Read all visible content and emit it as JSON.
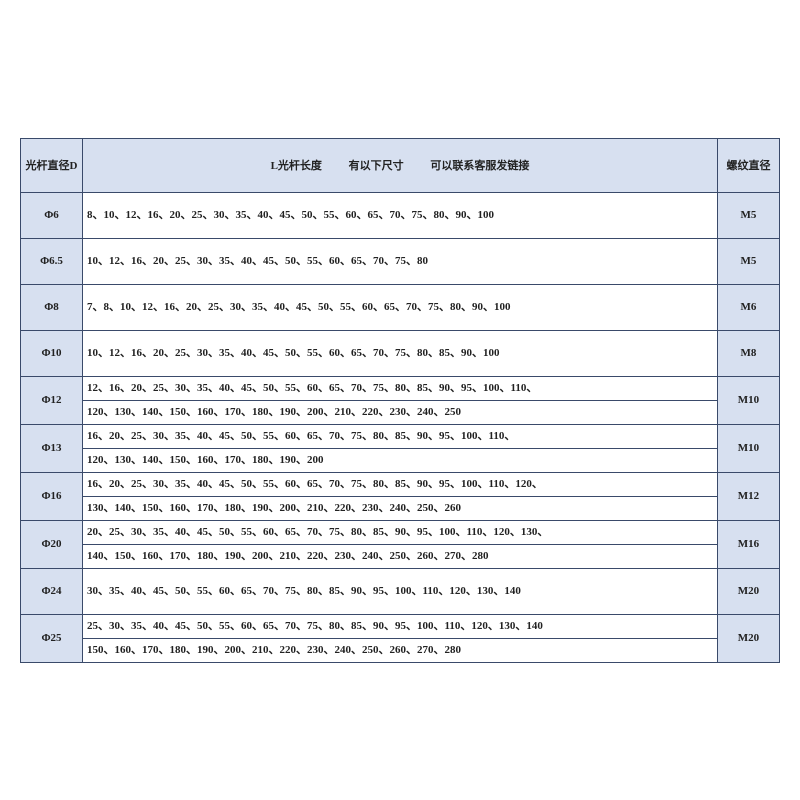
{
  "colors": {
    "header_bg": "#d7e0f0",
    "cell_bg": "#ffffff",
    "border": "#3a4a6a",
    "text": "#222222"
  },
  "table": {
    "header": {
      "col1": "光杆直径D",
      "col2_main": "L光杆长度",
      "col2_sub": "有以下尺寸",
      "col2_sub2": "可以联系客服发链接",
      "col3": "螺纹直径"
    },
    "rows": [
      {
        "diameter": "Φ6",
        "thread": "M5",
        "lengths": [
          "8、10、12、16、20、25、30、35、40、45、50、55、60、65、70、75、80、90、100"
        ]
      },
      {
        "diameter": "Φ6.5",
        "thread": "M5",
        "lengths": [
          "10、12、16、20、25、30、35、40、45、50、55、60、65、70、75、80"
        ]
      },
      {
        "diameter": "Φ8",
        "thread": "M6",
        "lengths": [
          "7、8、10、12、16、20、25、30、35、40、45、50、55、60、65、70、75、80、90、100"
        ]
      },
      {
        "diameter": "Φ10",
        "thread": "M8",
        "lengths": [
          "10、12、16、20、25、30、35、40、45、50、55、60、65、70、75、80、85、90、100"
        ]
      },
      {
        "diameter": "Φ12",
        "thread": "M10",
        "lengths": [
          "12、16、20、25、30、35、40、45、50、55、60、65、70、75、80、85、90、95、100、110、",
          "120、130、140、150、160、170、180、190、200、210、220、230、240、250"
        ]
      },
      {
        "diameter": "Φ13",
        "thread": "M10",
        "lengths": [
          "16、20、25、30、35、40、45、50、55、60、65、70、75、80、85、90、95、100、110、",
          "120、130、140、150、160、170、180、190、200"
        ]
      },
      {
        "diameter": "Φ16",
        "thread": "M12",
        "lengths": [
          "16、20、25、30、35、40、45、50、55、60、65、70、75、80、85、90、95、100、110、120、",
          "130、140、150、160、170、180、190、200、210、220、230、240、250、260"
        ]
      },
      {
        "diameter": "Φ20",
        "thread": "M16",
        "lengths": [
          "20、25、30、35、40、45、50、55、60、65、70、75、80、85、90、95、100、110、120、130、",
          "140、150、160、170、180、190、200、210、220、230、240、250、260、270、280"
        ]
      },
      {
        "diameter": "Φ24",
        "thread": "M20",
        "lengths": [
          "30、35、40、45、50、55、60、65、70、75、80、85、90、95、100、110、120、130、140"
        ]
      },
      {
        "diameter": "Φ25",
        "thread": "M20",
        "lengths": [
          "25、30、35、40、45、50、55、60、65、70、75、80、85、90、95、100、110、120、130、140",
          "150、160、170、180、190、200、210、220、230、240、250、260、270、280"
        ]
      }
    ]
  }
}
